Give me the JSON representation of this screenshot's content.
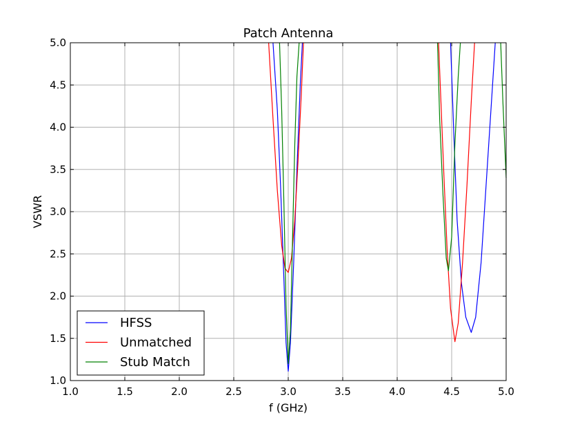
{
  "chart_data": {
    "type": "line",
    "title": "Patch Antenna",
    "xlabel": "f (GHz)",
    "ylabel": "VSWR",
    "xlim": [
      1.0,
      5.0
    ],
    "ylim": [
      1.0,
      5.0
    ],
    "xticks": [
      "1.0",
      "1.5",
      "2.0",
      "2.5",
      "3.0",
      "3.5",
      "4.0",
      "4.5",
      "5.0"
    ],
    "yticks": [
      "1.0",
      "1.5",
      "2.0",
      "2.5",
      "3.0",
      "3.5",
      "4.0",
      "4.5",
      "5.0"
    ],
    "grid": true,
    "legend_position": "lower-left",
    "series": [
      {
        "name": "HFSS",
        "color": "#0000ff",
        "segments": [
          [
            [
              2.86,
              5.0
            ],
            [
              2.9,
              4.2
            ],
            [
              2.93,
              3.3
            ],
            [
              2.96,
              2.2
            ],
            [
              2.98,
              1.45
            ],
            [
              3.0,
              1.11
            ],
            [
              3.02,
              1.45
            ],
            [
              3.05,
              2.4
            ],
            [
              3.08,
              3.5
            ],
            [
              3.11,
              4.5
            ],
            [
              3.13,
              5.0
            ]
          ],
          [
            [
              4.49,
              5.0
            ],
            [
              4.52,
              3.9
            ],
            [
              4.55,
              2.9
            ],
            [
              4.59,
              2.15
            ],
            [
              4.63,
              1.75
            ],
            [
              4.68,
              1.57
            ],
            [
              4.72,
              1.75
            ],
            [
              4.77,
              2.4
            ],
            [
              4.82,
              3.4
            ],
            [
              4.87,
              4.4
            ],
            [
              4.9,
              5.0
            ]
          ]
        ]
      },
      {
        "name": "Unmatched",
        "color": "#ff0000",
        "segments": [
          [
            [
              2.82,
              5.0
            ],
            [
              2.86,
              4.1
            ],
            [
              2.9,
              3.25
            ],
            [
              2.94,
              2.6
            ],
            [
              2.97,
              2.33
            ],
            [
              3.0,
              2.28
            ],
            [
              3.03,
              2.45
            ],
            [
              3.06,
              2.9
            ],
            [
              3.09,
              3.6
            ],
            [
              3.12,
              4.4
            ],
            [
              3.14,
              5.0
            ]
          ],
          [
            [
              4.38,
              5.0
            ],
            [
              4.4,
              4.35
            ],
            [
              4.43,
              3.4
            ],
            [
              4.46,
              2.5
            ],
            [
              4.49,
              1.85
            ],
            [
              4.53,
              1.46
            ],
            [
              4.56,
              1.68
            ],
            [
              4.6,
              2.4
            ],
            [
              4.64,
              3.3
            ],
            [
              4.68,
              4.3
            ],
            [
              4.71,
              5.0
            ]
          ]
        ]
      },
      {
        "name": "Stub Match",
        "color": "#008000",
        "segments": [
          [
            [
              2.92,
              5.0
            ],
            [
              2.94,
              4.2
            ],
            [
              2.96,
              3.1
            ],
            [
              2.98,
              1.9
            ],
            [
              3.0,
              1.2
            ],
            [
              3.02,
              1.6
            ],
            [
              3.04,
              2.7
            ],
            [
              3.06,
              3.8
            ],
            [
              3.08,
              4.6
            ],
            [
              3.1,
              5.0
            ]
          ],
          [
            [
              4.37,
              5.0
            ],
            [
              4.39,
              4.1
            ],
            [
              4.42,
              3.2
            ],
            [
              4.45,
              2.45
            ],
            [
              4.47,
              2.3
            ],
            [
              4.5,
              2.7
            ],
            [
              4.53,
              3.8
            ],
            [
              4.56,
              4.6
            ],
            [
              4.58,
              5.0
            ]
          ],
          [
            [
              4.95,
              5.0
            ],
            [
              4.97,
              4.3
            ],
            [
              5.0,
              3.4
            ]
          ]
        ]
      }
    ]
  }
}
